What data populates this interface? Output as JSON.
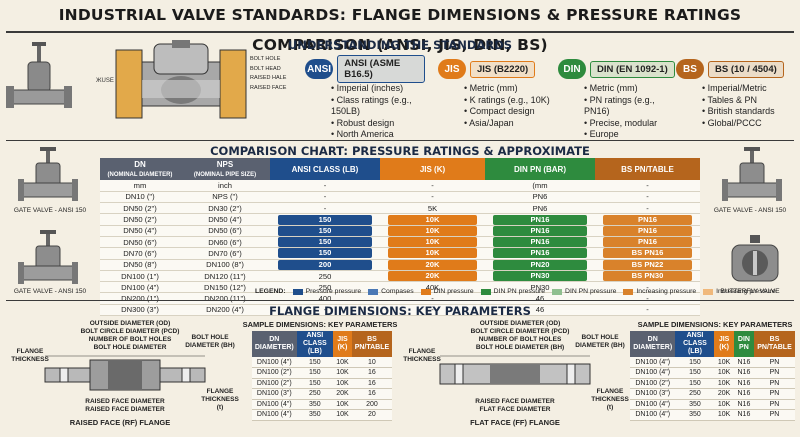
{
  "title": "INDUSTRIAL VALVE STANDARDS: FLANGE DIMENSIONS & PRESSURE RATINGS COMPARISON (ANSI, JIS, DIN, BS)",
  "sections": {
    "understanding": "UNDERSTANDING THE STANDARDS",
    "comparison": "COMPARISON CHART: PRESSURE RATINGS & APPROXIMATE EQUIVALENTS",
    "flange": "FLANGE DIMENSIONS: KEY PARAMETERS"
  },
  "valve_labels": {
    "bolt_hole": "BOLT HOLE",
    "bolt_head": "BOLT HEAD",
    "raised_hale": "RAISED HALE",
    "raised_face": "RAISED FACE",
    "base": "BASE"
  },
  "standards": [
    {
      "badge": "ANSI",
      "name": "ANSI (ASME B16.5)",
      "color": "#1f4e8c",
      "bullets": [
        "Imperial (inches)",
        "Class ratings (e.g., 150LB)",
        "Robust design",
        "North America"
      ]
    },
    {
      "badge": "JIS",
      "name": "JIS (B2220)",
      "color": "#e07b1a",
      "bullets": [
        "Metric (mm)",
        "K ratings (e.g., 10K)",
        "Compact design",
        "Asia/Japan"
      ]
    },
    {
      "badge": "DIN",
      "name": "DIN (EN 1092-1)",
      "color": "#2e8b3e",
      "bullets": [
        "Metric (mm)",
        "PN ratings (e.g., PN16)",
        "Precise, modular",
        "Europe"
      ]
    },
    {
      "badge": "BS",
      "name": "BS (10 / 4504)",
      "color": "#b5651d",
      "bullets": [
        "Imperial/Metric",
        "Tables & PN",
        "British standards",
        "Global/PCCC"
      ]
    }
  ],
  "side_labels": {
    "gate_left_1": "GATE VALVE - ANSI 150",
    "gate_left_2": "GATE VALVE - ANSI 150",
    "gate_right": "GATE VALVE - ANSI 150",
    "butterfly": "BUTTERFLY VALVE"
  },
  "comparison": {
    "headers": [
      "DN",
      "NPS",
      "ANSI CLASS (LB)",
      "JIS (K)",
      "DIN PN (BAR)",
      "BS PN/TABLE"
    ],
    "subheaders": [
      "(NOMINAL DIAMETER)",
      "(NOMINAL PIPE SIZE)"
    ],
    "rows": [
      [
        "mm",
        "inch",
        "-",
        "-",
        "(mm",
        "-"
      ],
      [
        "DN10 (\")",
        "NPS (\")",
        "-",
        "-",
        "PN6",
        "-"
      ],
      [
        "DN50 (2\")",
        "DN30 (2\")",
        "-",
        "5K",
        "PN6",
        "-"
      ],
      [
        "DN50 (2\")",
        "DN50 (4\")",
        "150",
        "10K",
        "PN16",
        "PN16"
      ],
      [
        "DN50 (4\")",
        "DN50 (6\")",
        "150",
        "10K",
        "PN16",
        "PN16"
      ],
      [
        "DN50 (6\")",
        "DN60 (6\")",
        "150",
        "10K",
        "PN16",
        "PN16"
      ],
      [
        "DN70 (6\")",
        "DN70 (6\")",
        "150",
        "10K",
        "PN16",
        "BS PN16"
      ],
      [
        "DN50 (8\")",
        "DN100 (8\")",
        "200",
        "20K",
        "PN20",
        "BS PN22"
      ],
      [
        "DN100 (1\")",
        "DN120 (11\")",
        "250",
        "20K",
        "PN30",
        "BS PN30"
      ],
      [
        "DN100 (4\")",
        "DN150 (12\")",
        "250",
        "40K",
        "PN30",
        "-"
      ],
      [
        "DN200 (1\")",
        "DN200 (11\")",
        "400",
        "-",
        "46",
        "-"
      ],
      [
        "DN300 (3\")",
        "DN200 (4\")",
        "-",
        "-",
        "46",
        "-"
      ]
    ],
    "legend_title": "LEGEND:",
    "legend": [
      {
        "label": "Pressure pressure",
        "color": "#1f4e8c"
      },
      {
        "label": "Compases",
        "color": "#4a78b5"
      },
      {
        "label": "DIN pressure",
        "color": "#e07b1a"
      },
      {
        "label": "DIN PN pressure",
        "color": "#2e8b3e"
      },
      {
        "label": "DIN PN pressure",
        "color": "#8fbf8f"
      },
      {
        "label": "Increasing pressure",
        "color": "#d9822b"
      },
      {
        "label": "Increasing pressure",
        "color": "#f0b87a"
      }
    ]
  },
  "flange_rf": {
    "labels": {
      "od": "OUTSIDE DIAMETER (OD)",
      "pcd": "BOLT CIRCLE DIAMETER (PCD)",
      "nbh": "NUMBER OF BOLT HOLES",
      "bhd": "BOLT HOLE DIAMETER",
      "thick_left": "FLANGE THICKNESS",
      "bh": "BOLT HOLE DIAMETER (BH)",
      "rfd1": "RAISED FACE DIAMETER",
      "rfd2": "RAISED FACE DIAMETER",
      "thick_right": "FLANGE THICKNESS (t)"
    },
    "caption": "RAISED FACE (RF) FLANGE"
  },
  "flange_ff": {
    "labels": {
      "od": "OUTSIDE DIAMETER (OD)",
      "pcd": "BOLT CIRCLE DIAMETER (PCD)",
      "nbh": "NUMBER OF BOLT HOLES",
      "bhd": "BOLT HOLE DIAMETER (BH)",
      "thick_left": "FLANGE THICKNESS",
      "bh": "BOLT HOLE DIAMETER (BH)",
      "rfd1": "RAISED FACE DIAMETER",
      "rfd2": "FLAT FACE DIAMETER",
      "thick_right": "FLANGE THICKNESS (t)"
    },
    "caption": "FLAT FACE (FF) FLANGE"
  },
  "sample_left": {
    "title": "SAMPLE DIMENSIONS: KEY PARAMETERS",
    "headers": [
      "DN DIAMETER)",
      "ANSI CLASS (LB)",
      "JIS (K)",
      "BS PN/TABLE"
    ],
    "rows": [
      [
        "DN100 (4\")",
        "150",
        "10K",
        "10"
      ],
      [
        "DN100 (2\")",
        "150",
        "10K",
        "16"
      ],
      [
        "DN100 (2\")",
        "150",
        "10K",
        "16"
      ],
      [
        "DN100 (3\")",
        "250",
        "20K",
        "16"
      ],
      [
        "DN100 (4\")",
        "350",
        "10K",
        "200"
      ],
      [
        "DN100 (4\")",
        "350",
        "10K",
        "20"
      ]
    ]
  },
  "sample_right": {
    "title": "SAMPLE DIMENSIONS: KEY PARAMETERS",
    "headers": [
      "DN DIAMETER)",
      "ANSI CLASS (LB)",
      "JIS (K)",
      "DIN PN",
      "BS PN/TABLE"
    ],
    "rows": [
      [
        "DN100 (4\")",
        "150",
        "10K",
        "N16",
        "PN"
      ],
      [
        "DN100 (4\")",
        "150",
        "10K",
        "N16",
        "PN"
      ],
      [
        "DN100 (2\")",
        "150",
        "10K",
        "N16",
        "PN"
      ],
      [
        "DN100 (3\")",
        "250",
        "20K",
        "N16",
        "PN"
      ],
      [
        "DN100 (4\")",
        "350",
        "10K",
        "N16",
        "PN"
      ],
      [
        "DN100 (4\")",
        "350",
        "10K",
        "N16",
        "PN"
      ]
    ]
  }
}
